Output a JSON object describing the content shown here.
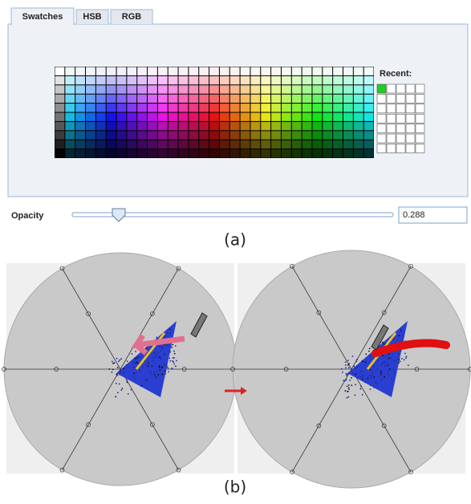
{
  "color_chooser": {
    "tabs": [
      "Swatches",
      "HSB",
      "RGB"
    ],
    "recent_label": "Recent:",
    "opacity_label": "Opacity",
    "opacity_value": "0.288"
  },
  "captions": {
    "a": "(a)",
    "b": "(b)"
  }
}
